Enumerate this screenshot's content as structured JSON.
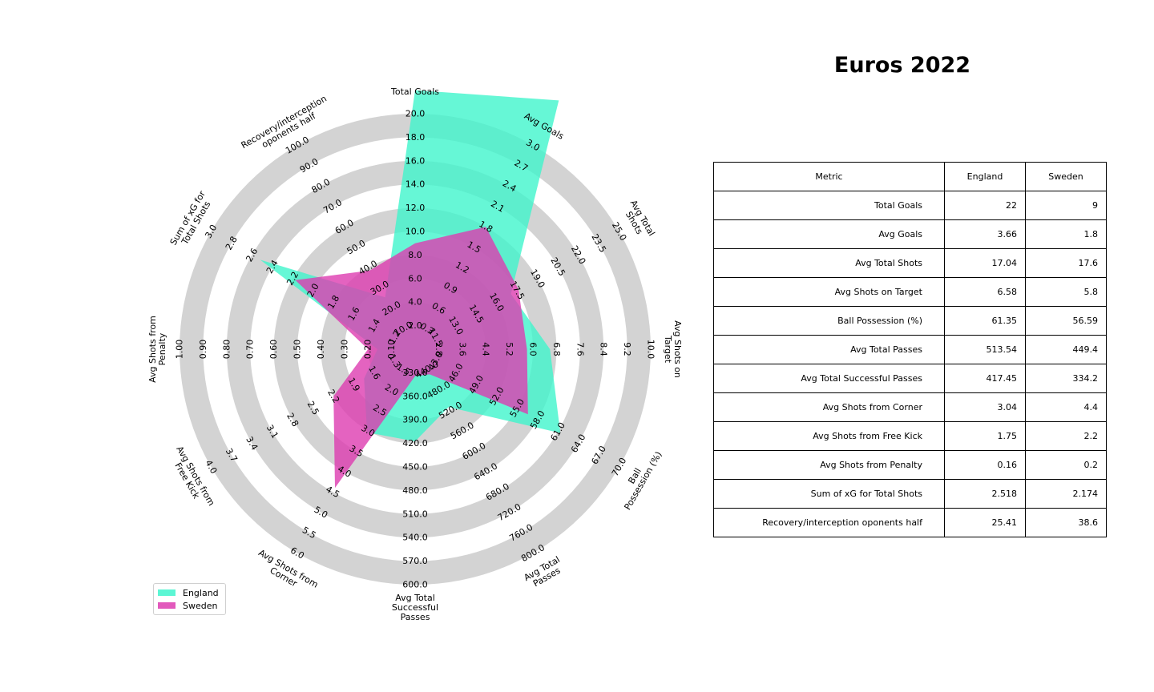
{
  "title": "Euros 2022",
  "colors": {
    "england": "#40f5cc",
    "sweden": "#dd3cb0",
    "ring": "#d3d3d3"
  },
  "legend": [
    {
      "name": "England",
      "color": "#40f5cc"
    },
    {
      "name": "Sweden",
      "color": "#dd3cb0"
    }
  ],
  "table": {
    "headers": [
      "Metric",
      "England",
      "Sweden"
    ],
    "rows": [
      [
        "Total Goals",
        "22",
        "9"
      ],
      [
        "Avg Goals",
        "3.66",
        "1.8"
      ],
      [
        "Avg Total Shots",
        "17.04",
        "17.6"
      ],
      [
        "Avg Shots on Target",
        "6.58",
        "5.8"
      ],
      [
        "Ball Possession (%)",
        "61.35",
        "56.59"
      ],
      [
        "Avg Total Passes",
        "513.54",
        "449.4"
      ],
      [
        "Avg Total Successful Passes",
        "417.45",
        "334.2"
      ],
      [
        "Avg Shots from Corner",
        "3.04",
        "4.4"
      ],
      [
        "Avg Shots from Free Kick",
        "1.75",
        "2.2"
      ],
      [
        "Avg Shots from Penalty",
        "0.16",
        "0.2"
      ],
      [
        "Sum of xG for Total Shots",
        "2.518",
        "2.174"
      ],
      [
        "Recovery/interception oponents half",
        "25.41",
        "38.6"
      ]
    ]
  },
  "chart_data": {
    "type": "radar",
    "title": "",
    "axes": [
      {
        "label": "Total Goals",
        "range": [
          0,
          20
        ],
        "ticks": [
          "2.0",
          "4.0",
          "6.0",
          "8.0",
          "10.0",
          "12.0",
          "14.0",
          "16.0",
          "18.0",
          "20.0"
        ]
      },
      {
        "label": "Avg Goals",
        "range": [
          0,
          3
        ],
        "ticks": [
          "0.3",
          "0.6",
          "0.9",
          "1.2",
          "1.5",
          "1.8",
          "2.1",
          "2.4",
          "2.7",
          "3.0"
        ]
      },
      {
        "label": "Avg Total Shots",
        "range": [
          10,
          25
        ],
        "ticks": [
          "11.5",
          "13.0",
          "14.5",
          "16.0",
          "17.5",
          "19.0",
          "20.5",
          "22.0",
          "23.5",
          "25.0"
        ]
      },
      {
        "label": "Avg Shots on Target",
        "range": [
          2,
          10
        ],
        "ticks": [
          "2.8",
          "3.6",
          "4.4",
          "5.2",
          "6.0",
          "6.8",
          "7.6",
          "8.4",
          "9.2",
          "10.0"
        ]
      },
      {
        "label": "Ball Possession (%)",
        "range": [
          40,
          70
        ],
        "ticks": [
          "43.0",
          "46.0",
          "49.0",
          "52.0",
          "55.0",
          "58.0",
          "61.0",
          "64.0",
          "67.0",
          "70.0"
        ]
      },
      {
        "label": "Avg Total Passes",
        "range": [
          400,
          800
        ],
        "ticks": [
          "440.0",
          "480.0",
          "520.0",
          "560.0",
          "600.0",
          "640.0",
          "680.0",
          "720.0",
          "760.0",
          "800.0"
        ]
      },
      {
        "label": "Avg Total Successful Passes",
        "range": [
          300,
          600
        ],
        "ticks": [
          "330.0",
          "360.0",
          "390.0",
          "420.0",
          "450.0",
          "480.0",
          "510.0",
          "540.0",
          "570.0",
          "600.0"
        ]
      },
      {
        "label": "Avg Shots from Corner",
        "range": [
          1,
          6
        ],
        "ticks": [
          "1.5",
          "2.0",
          "2.5",
          "3.0",
          "3.5",
          "4.0",
          "4.5",
          "5.0",
          "5.5",
          "6.0"
        ]
      },
      {
        "label": "Avg Shots from Free Kick",
        "range": [
          1,
          4
        ],
        "ticks": [
          "1.3",
          "1.6",
          "1.9",
          "2.2",
          "2.5",
          "2.8",
          "3.1",
          "3.4",
          "3.7",
          "4.0"
        ]
      },
      {
        "label": "Avg Shots from Penalty",
        "range": [
          0,
          1
        ],
        "ticks": [
          "0.10",
          "0.20",
          "0.30",
          "0.40",
          "0.50",
          "0.60",
          "0.70",
          "0.80",
          "0.90",
          "1.00"
        ]
      },
      {
        "label": "Sum of xG for Total Shots",
        "range": [
          1,
          3
        ],
        "ticks": [
          "1.2",
          "1.4",
          "1.6",
          "1.8",
          "2.0",
          "2.2",
          "2.4",
          "2.6",
          "2.8",
          "3.0"
        ]
      },
      {
        "label": "Recovery/interception oponents half",
        "range": [
          0,
          100
        ],
        "ticks": [
          "10.0",
          "20.0",
          "30.0",
          "40.0",
          "50.0",
          "60.0",
          "70.0",
          "80.0",
          "90.0",
          "100.0"
        ]
      }
    ],
    "series": [
      {
        "name": "England",
        "values": [
          22,
          3.66,
          17.04,
          6.58,
          61.35,
          513.54,
          417.45,
          3.04,
          1.75,
          0.16,
          2.518,
          25.41
        ]
      },
      {
        "name": "Sweden",
        "values": [
          9,
          1.8,
          17.6,
          5.8,
          56.59,
          449.4,
          334.2,
          4.4,
          2.2,
          0.2,
          2.174,
          38.6
        ]
      }
    ],
    "legend_position": "lower-left"
  }
}
